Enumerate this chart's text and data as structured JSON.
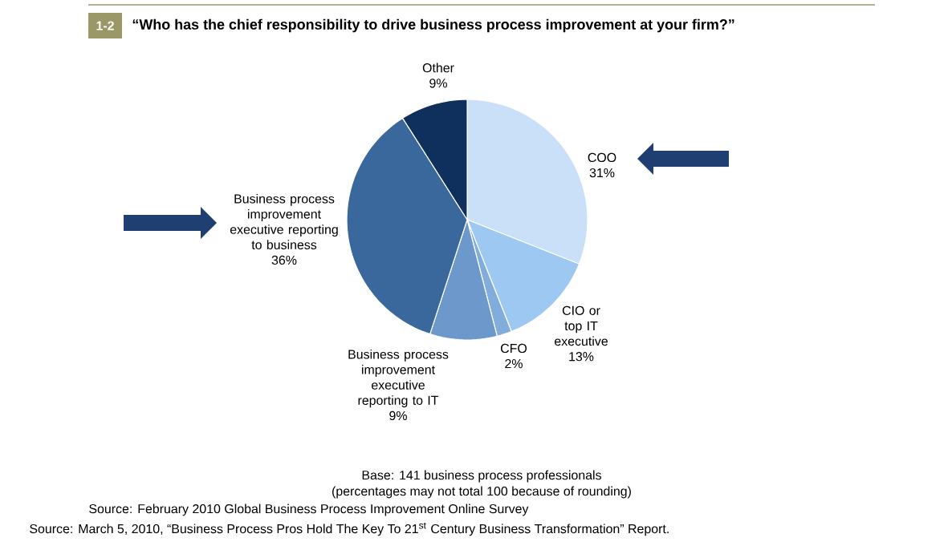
{
  "chart_data": {
    "type": "pie",
    "title": "“Who has the chief responsibility to drive business process improvement at your firm?”",
    "categories": [
      "COO",
      "CIO or top IT executive",
      "CFO",
      "Business process improvement executive reporting to IT",
      "Business process improvement executive reporting to business",
      "Other"
    ],
    "values": [
      31,
      13,
      2,
      9,
      36,
      9
    ],
    "value_labels": [
      "31%",
      "13%",
      "2%",
      "9%",
      "36%",
      "9%"
    ],
    "colors": [
      "#c9e0f8",
      "#9dc8f2",
      "#82acdc",
      "#6c98cc",
      "#3b689c",
      "#0f2f5c"
    ],
    "annotations": [
      "1-2",
      "Base: 141 business process professionals",
      "(percentages may not total 100 because of rounding)",
      "Source: February 2010 Global Business Process Improvement Online Survey",
      "Source: March 5, 2010, “Business Process Pros Hold The Key To 21$^{st}$ Century Business Transformation” Report."
    ]
  }
}
